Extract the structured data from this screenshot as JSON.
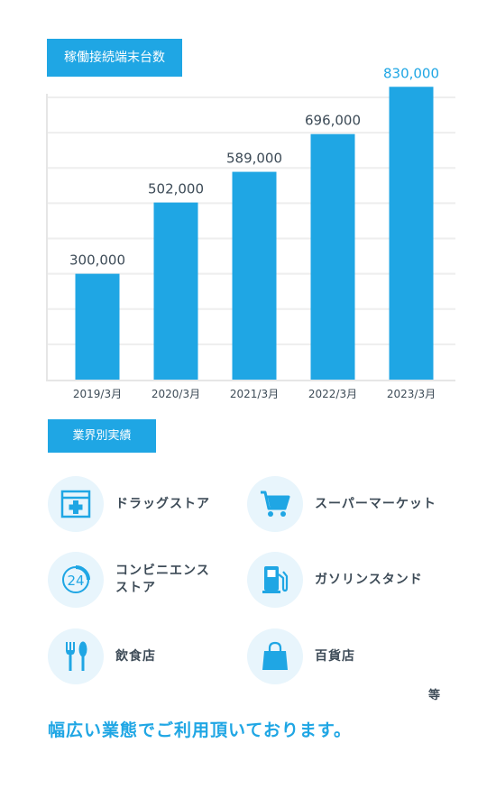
{
  "chart_title": "稼働接続端末台数",
  "chart_data": {
    "type": "bar",
    "categories": [
      "2019/3月",
      "2020/3月",
      "2021/3月",
      "2022/3月",
      "2023/3月"
    ],
    "values": [
      300000,
      502000,
      589000,
      696000,
      830000
    ],
    "value_labels": [
      "300,000",
      "502,000",
      "589,000",
      "696,000",
      "830,000"
    ],
    "ylim": [
      0,
      800000
    ],
    "grid": true,
    "colors": {
      "bar": "#1fa6e4",
      "highlight_label": "#1fa6e4",
      "label": "#3d4b57"
    }
  },
  "industry_title": "業界別実績",
  "industries": [
    {
      "label": "ドラッグストア",
      "icon": "pharmacy-icon"
    },
    {
      "label": "スーパーマーケット",
      "icon": "shopping-cart-icon"
    },
    {
      "label": "コンビニエンスストア",
      "label_line1": "コンビニエンス",
      "label_line2": "ストア",
      "icon": "convenience-store-24-icon"
    },
    {
      "label": "ガソリンスタンド",
      "icon": "gas-station-icon"
    },
    {
      "label": "飲食店",
      "icon": "restaurant-icon"
    },
    {
      "label": "百貨店",
      "icon": "shopping-bag-icon"
    }
  ],
  "note": "等",
  "tagline": "幅広い業態でご利用頂いております。"
}
